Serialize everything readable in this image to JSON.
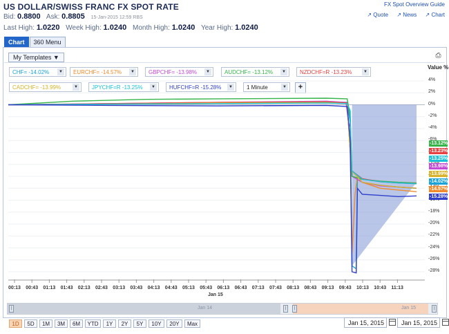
{
  "header": {
    "title": "US DOLLAR/SWISS FRANC FX SPOT RATE",
    "bid_label": "Bid:",
    "bid": "0.8800",
    "ask_label": "Ask:",
    "ask": "0.8805",
    "timestamp": "15-Jan-2015  12:59 RBS",
    "last_high_label": "Last High:",
    "last_high": "1.0220",
    "week_high_label": "Week High:",
    "week_high": "1.0240",
    "month_high_label": "Month High:",
    "month_high": "1.0240",
    "year_high_label": "Year High:",
    "year_high": "1.0240"
  },
  "links": {
    "guide": "FX Spot Overview Guide",
    "quote": "Quote",
    "news": "News",
    "chart": "Chart"
  },
  "tabs": [
    {
      "label": "Chart"
    },
    {
      "label": "360 Menu"
    }
  ],
  "templates_label": "My Templates ▼",
  "print_icon": "printer-icon",
  "series_selectors": [
    {
      "label": "CHF= -14.02%",
      "color": "#1aa3d6"
    },
    {
      "label": "EURCHF= -14.57%",
      "color": "#f08a2c"
    },
    {
      "label": "GBPCHF= -13.98%",
      "color": "#c44ad6"
    },
    {
      "label": "AUDCHF= -13.12%",
      "color": "#36b44a"
    },
    {
      "label": "NZDCHF=R -13.23%",
      "color": "#e84040"
    },
    {
      "label": "CADCHF= -13.99%",
      "color": "#d7b22a"
    },
    {
      "label": "JPYCHF=R -13.25%",
      "color": "#19c2d6"
    },
    {
      "label": "HUFCHF=R -15.28%",
      "color": "#2f3fcc"
    }
  ],
  "interval": "1 Minute",
  "add_label": "+",
  "value_axis_title": "Value %",
  "y_ticks": [
    "4%",
    "2%",
    "0%",
    "-2%",
    "-4%",
    "-6%",
    "-8%",
    "-10%",
    "-12%",
    "-14%",
    "-16%",
    "-18%",
    "-20%",
    "-22%",
    "-24%",
    "-26%",
    "-28%"
  ],
  "badges": [
    {
      "label": "-13.12%",
      "color": "#36b44a"
    },
    {
      "label": "-13.23%",
      "color": "#e84040"
    },
    {
      "label": "-13.25%",
      "color": "#19c2d6"
    },
    {
      "label": "-13.98%",
      "color": "#c44ad6"
    },
    {
      "label": "-13.99%",
      "color": "#d7b22a"
    },
    {
      "label": "-14.02%",
      "color": "#1aa3d6"
    },
    {
      "label": "-14.57%",
      "color": "#f08a2c"
    },
    {
      "label": "-15.28%",
      "color": "#2f3fcc"
    }
  ],
  "x_ticks": [
    "00:13",
    "00:43",
    "01:13",
    "01:43",
    "02:13",
    "02:43",
    "03:13",
    "03:43",
    "04:13",
    "04:43",
    "05:13",
    "05:43",
    "06:13",
    "06:43",
    "07:13",
    "07:43",
    "08:13",
    "08:43",
    "09:13",
    "09:43",
    "10:13",
    "10:43",
    "11:13"
  ],
  "date_label": "Jan 15",
  "scroller": {
    "left_label": "Jan 14",
    "right_label": "Jan 15"
  },
  "ranges": [
    {
      "label": "1D",
      "active": true
    },
    {
      "label": "5D"
    },
    {
      "label": "1M"
    },
    {
      "label": "3M"
    },
    {
      "label": "6M"
    },
    {
      "label": "YTD"
    },
    {
      "label": "1Y"
    },
    {
      "label": "2Y"
    },
    {
      "label": "5Y"
    },
    {
      "label": "10Y"
    },
    {
      "label": "20Y"
    },
    {
      "label": "Max"
    }
  ],
  "date_from": "Jan 15, 2015",
  "date_to": "Jan 15, 2015",
  "chart_data": {
    "type": "line",
    "ylabel": "Value %",
    "ylim": [
      -29,
      5
    ],
    "x_range": [
      "00:13",
      "11:30"
    ],
    "series": [
      {
        "name": "CHF=",
        "color": "#1aa3d6",
        "points": [
          [
            "00:13",
            0
          ],
          [
            "03:00",
            0.1
          ],
          [
            "06:00",
            0.3
          ],
          [
            "09:00",
            0.5
          ],
          [
            "09:35",
            0.4
          ],
          [
            "09:40",
            -3
          ],
          [
            "09:43",
            -27
          ],
          [
            "09:50",
            -27.5
          ],
          [
            "09:52",
            -12
          ],
          [
            "10:00",
            -13
          ],
          [
            "10:30",
            -13.5
          ],
          [
            "11:00",
            -13.8
          ],
          [
            "11:30",
            -14.02
          ]
        ]
      },
      {
        "name": "EURCHF=",
        "color": "#f08a2c",
        "points": [
          [
            "00:13",
            0
          ],
          [
            "03:00",
            0.1
          ],
          [
            "06:00",
            0.2
          ],
          [
            "09:00",
            0.3
          ],
          [
            "09:35",
            0.2
          ],
          [
            "09:40",
            -8
          ],
          [
            "09:43",
            -25
          ],
          [
            "09:48",
            -15
          ],
          [
            "09:52",
            -12
          ],
          [
            "10:00",
            -13
          ],
          [
            "10:30",
            -14
          ],
          [
            "11:00",
            -14.3
          ],
          [
            "11:30",
            -14.57
          ]
        ]
      },
      {
        "name": "GBPCHF=",
        "color": "#c44ad6",
        "points": [
          [
            "00:13",
            0
          ],
          [
            "03:00",
            0.2
          ],
          [
            "06:00",
            0.4
          ],
          [
            "09:00",
            0.6
          ],
          [
            "09:33",
            0.4
          ],
          [
            "09:36",
            -2
          ],
          [
            "09:38",
            -3.8
          ],
          [
            "09:40",
            -3
          ],
          [
            "09:43",
            -12
          ],
          [
            "10:00",
            -13
          ],
          [
            "10:30",
            -13.6
          ],
          [
            "11:00",
            -13.8
          ],
          [
            "11:30",
            -13.98
          ]
        ]
      },
      {
        "name": "AUDCHF=",
        "color": "#36b44a",
        "points": [
          [
            "00:13",
            0
          ],
          [
            "02:00",
            0.6
          ],
          [
            "04:00",
            0.9
          ],
          [
            "06:00",
            1.0
          ],
          [
            "09:00",
            1.1
          ],
          [
            "09:35",
            1.0
          ],
          [
            "09:40",
            -2
          ],
          [
            "09:43",
            -12
          ],
          [
            "10:00",
            -12.5
          ],
          [
            "10:30",
            -12.8
          ],
          [
            "11:00",
            -13
          ],
          [
            "11:30",
            -13.12
          ]
        ]
      },
      {
        "name": "NZDCHF=R",
        "color": "#e84040",
        "points": [
          [
            "00:13",
            0
          ],
          [
            "03:00",
            0.2
          ],
          [
            "06:00",
            0.4
          ],
          [
            "09:00",
            0.5
          ],
          [
            "09:35",
            0.3
          ],
          [
            "09:42",
            -11
          ],
          [
            "10:00",
            -12.4
          ],
          [
            "10:30",
            -12.9
          ],
          [
            "11:00",
            -13.1
          ],
          [
            "11:30",
            -13.23
          ]
        ]
      },
      {
        "name": "CADCHF=",
        "color": "#d7b22a",
        "points": [
          [
            "00:13",
            0
          ],
          [
            "03:00",
            0.1
          ],
          [
            "06:00",
            0.3
          ],
          [
            "09:00",
            0.4
          ],
          [
            "09:35",
            0.2
          ],
          [
            "09:42",
            -11
          ],
          [
            "10:00",
            -13
          ],
          [
            "10:30",
            -13.5
          ],
          [
            "11:00",
            -13.8
          ],
          [
            "11:30",
            -13.99
          ]
        ]
      },
      {
        "name": "JPYCHF=R",
        "color": "#19c2d6",
        "points": [
          [
            "00:13",
            0
          ],
          [
            "03:00",
            0.1
          ],
          [
            "06:00",
            0.2
          ],
          [
            "09:00",
            0.3
          ],
          [
            "09:35",
            0.2
          ],
          [
            "09:40",
            -1
          ],
          [
            "09:42",
            -11
          ],
          [
            "10:00",
            -12.5
          ],
          [
            "10:30",
            -12.9
          ],
          [
            "11:00",
            -13.1
          ],
          [
            "11:30",
            -13.25
          ]
        ]
      },
      {
        "name": "HUFCHF=R",
        "color": "#2f3fcc",
        "points": [
          [
            "00:13",
            0
          ],
          [
            "03:00",
            -0.1
          ],
          [
            "06:00",
            -0.2
          ],
          [
            "09:00",
            -0.1
          ],
          [
            "09:35",
            -0.3
          ],
          [
            "09:40",
            -6
          ],
          [
            "09:43",
            -28
          ],
          [
            "09:50",
            -28.2
          ],
          [
            "09:52",
            -14
          ],
          [
            "10:00",
            -15
          ],
          [
            "10:30",
            -15.2
          ],
          [
            "11:00",
            -15.4
          ],
          [
            "11:30",
            -15.28
          ]
        ]
      }
    ]
  }
}
